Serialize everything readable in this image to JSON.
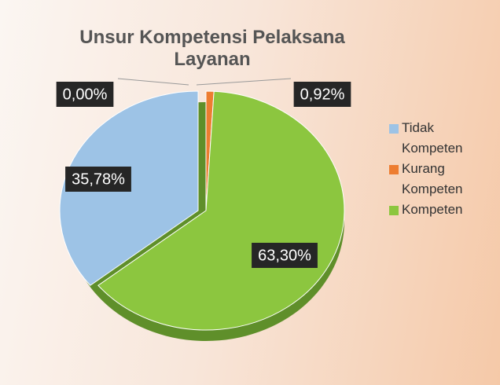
{
  "chart_data": {
    "type": "pie",
    "title": "Unsur Kompetensi Pelaksana Layanan",
    "categories": [
      "Tidak Kompeten",
      null,
      "Kurang Kompeten",
      "Kompeten"
    ],
    "values": [
      35.78,
      0,
      0.92,
      63.3
    ],
    "value_labels": [
      "35,78%",
      "0,00%",
      "0,92%",
      "63,30%"
    ],
    "colors": [
      "#9dc3e6",
      "#5b9bd5",
      "#ed7d31",
      "#8cc63f"
    ],
    "legend": "right"
  }
}
